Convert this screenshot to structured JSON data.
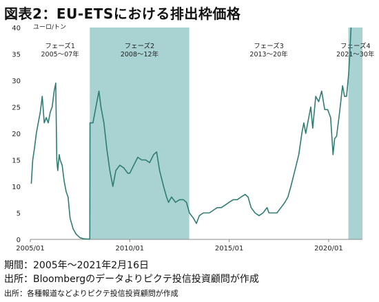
{
  "title": "図表2：EU-ETSにおける排出枠価格",
  "footnotes": {
    "period": "期間：2005年～2021年2月16日",
    "source": "出所：Bloombergのデータよりピクテ投信投資顧問が作成",
    "source2": "出所：各種報道などよりピクテ投信投資顧問が作成"
  },
  "colors": {
    "line": "#2e7d73",
    "band": "#a9d2d2",
    "axis": "#888888"
  },
  "chart_data": {
    "type": "line",
    "title": "図表2：EU-ETSにおける排出枠価格",
    "unit_label": "ユーロ/トン",
    "xlabel": "",
    "ylabel": "",
    "ylim": [
      0,
      40
    ],
    "y_ticks": [
      "0",
      "5",
      "10",
      "15",
      "20",
      "25",
      "30",
      "35",
      "40"
    ],
    "x_ticks": [
      {
        "year": 2005.0,
        "label": "2005/01"
      },
      {
        "year": 2010.0,
        "label": "2010/01"
      },
      {
        "year": 2015.0,
        "label": "2015/01"
      },
      {
        "year": 2020.0,
        "label": "2020/01"
      }
    ],
    "xlim": [
      2005.0,
      2021.13
    ],
    "grid": false,
    "phases": [
      {
        "name": "フェーズ1",
        "period": "2005～07年",
        "start": 2005.0,
        "end": 2007.99,
        "shaded": false
      },
      {
        "name": "フェーズ2",
        "period": "2008～12年",
        "start": 2007.99,
        "end": 2012.99,
        "shaded": true
      },
      {
        "name": "フェーズ3",
        "period": "2013～20年",
        "start": 2012.99,
        "end": 2020.99,
        "shaded": false
      },
      {
        "name": "フェーズ4",
        "period": "2021～30年",
        "start": 2020.99,
        "end": 2023.6,
        "shaded": true
      }
    ],
    "series": [
      {
        "values": [
          [
            2005.05,
            10.5
          ],
          [
            2005.12,
            15
          ],
          [
            2005.2,
            17
          ],
          [
            2005.3,
            20
          ],
          [
            2005.4,
            22
          ],
          [
            2005.5,
            24
          ],
          [
            2005.6,
            27
          ],
          [
            2005.7,
            22
          ],
          [
            2005.8,
            23
          ],
          [
            2005.9,
            22
          ],
          [
            2006.0,
            24
          ],
          [
            2006.1,
            25
          ],
          [
            2006.2,
            28
          ],
          [
            2006.28,
            29.5
          ],
          [
            2006.33,
            15
          ],
          [
            2006.38,
            13
          ],
          [
            2006.45,
            16
          ],
          [
            2006.5,
            15
          ],
          [
            2006.6,
            14
          ],
          [
            2006.7,
            11
          ],
          [
            2006.8,
            9
          ],
          [
            2006.9,
            8
          ],
          [
            2007.0,
            4
          ],
          [
            2007.15,
            2
          ],
          [
            2007.3,
            1
          ],
          [
            2007.5,
            0.3
          ],
          [
            2007.7,
            0.1
          ],
          [
            2007.99,
            0.05
          ],
          [
            2008.0,
            22
          ],
          [
            2008.15,
            22
          ],
          [
            2008.3,
            25
          ],
          [
            2008.45,
            28
          ],
          [
            2008.55,
            25
          ],
          [
            2008.7,
            22
          ],
          [
            2008.85,
            17
          ],
          [
            2009.0,
            13
          ],
          [
            2009.15,
            10
          ],
          [
            2009.3,
            13
          ],
          [
            2009.5,
            14
          ],
          [
            2009.7,
            13.5
          ],
          [
            2009.9,
            12.5
          ],
          [
            2010.0,
            12.5
          ],
          [
            2010.2,
            14
          ],
          [
            2010.4,
            15.5
          ],
          [
            2010.6,
            15
          ],
          [
            2010.8,
            15
          ],
          [
            2011.0,
            14.5
          ],
          [
            2011.2,
            16
          ],
          [
            2011.35,
            16.5
          ],
          [
            2011.5,
            13
          ],
          [
            2011.7,
            10
          ],
          [
            2011.85,
            8
          ],
          [
            2011.95,
            7
          ],
          [
            2012.1,
            8
          ],
          [
            2012.3,
            7
          ],
          [
            2012.5,
            7.5
          ],
          [
            2012.7,
            7.5
          ],
          [
            2012.85,
            7
          ],
          [
            2013.0,
            5
          ],
          [
            2013.2,
            4
          ],
          [
            2013.35,
            3
          ],
          [
            2013.5,
            4.5
          ],
          [
            2013.7,
            5
          ],
          [
            2013.9,
            5
          ],
          [
            2014.0,
            5
          ],
          [
            2014.2,
            5.5
          ],
          [
            2014.4,
            6
          ],
          [
            2014.6,
            6
          ],
          [
            2014.8,
            6.5
          ],
          [
            2015.0,
            7
          ],
          [
            2015.2,
            7.5
          ],
          [
            2015.4,
            7.5
          ],
          [
            2015.6,
            8
          ],
          [
            2015.8,
            8.5
          ],
          [
            2015.95,
            8
          ],
          [
            2016.1,
            6
          ],
          [
            2016.3,
            5
          ],
          [
            2016.5,
            4.5
          ],
          [
            2016.7,
            5
          ],
          [
            2016.9,
            6
          ],
          [
            2017.0,
            5
          ],
          [
            2017.2,
            5
          ],
          [
            2017.4,
            5
          ],
          [
            2017.6,
            6
          ],
          [
            2017.8,
            7
          ],
          [
            2017.95,
            8
          ],
          [
            2018.1,
            10
          ],
          [
            2018.3,
            13
          ],
          [
            2018.5,
            16
          ],
          [
            2018.65,
            20
          ],
          [
            2018.75,
            22
          ],
          [
            2018.85,
            20
          ],
          [
            2018.95,
            22
          ],
          [
            2019.1,
            25
          ],
          [
            2019.2,
            21
          ],
          [
            2019.35,
            27
          ],
          [
            2019.5,
            26
          ],
          [
            2019.65,
            28
          ],
          [
            2019.8,
            24.5
          ],
          [
            2019.95,
            24.5
          ],
          [
            2020.1,
            23
          ],
          [
            2020.22,
            16
          ],
          [
            2020.3,
            19
          ],
          [
            2020.4,
            19.5
          ],
          [
            2020.55,
            24
          ],
          [
            2020.7,
            29
          ],
          [
            2020.8,
            27
          ],
          [
            2020.9,
            27
          ],
          [
            2021.0,
            31
          ],
          [
            2021.05,
            34
          ],
          [
            2021.1,
            38
          ],
          [
            2021.13,
            40
          ]
        ]
      }
    ]
  }
}
